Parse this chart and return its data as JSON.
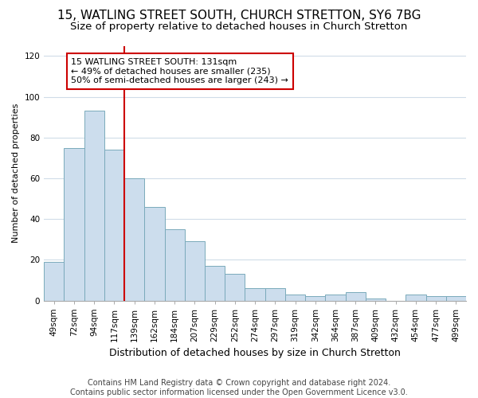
{
  "title": "15, WATLING STREET SOUTH, CHURCH STRETTON, SY6 7BG",
  "subtitle": "Size of property relative to detached houses in Church Stretton",
  "xlabel": "Distribution of detached houses by size in Church Stretton",
  "ylabel": "Number of detached properties",
  "bar_labels": [
    "49sqm",
    "72sqm",
    "94sqm",
    "117sqm",
    "139sqm",
    "162sqm",
    "184sqm",
    "207sqm",
    "229sqm",
    "252sqm",
    "274sqm",
    "297sqm",
    "319sqm",
    "342sqm",
    "364sqm",
    "387sqm",
    "409sqm",
    "432sqm",
    "454sqm",
    "477sqm",
    "499sqm"
  ],
  "bar_values": [
    19,
    75,
    93,
    74,
    60,
    46,
    35,
    29,
    17,
    13,
    6,
    6,
    3,
    2,
    3,
    4,
    1,
    0,
    3,
    2,
    2
  ],
  "bar_color": "#ccdded",
  "bar_edge_color": "#7aaabb",
  "vline_color": "#cc0000",
  "vline_index": 4,
  "annotation_text": "15 WATLING STREET SOUTH: 131sqm\n← 49% of detached houses are smaller (235)\n50% of semi-detached houses are larger (243) →",
  "annotation_box_facecolor": "#ffffff",
  "annotation_box_edgecolor": "#cc0000",
  "ylim": [
    0,
    125
  ],
  "yticks": [
    0,
    20,
    40,
    60,
    80,
    100,
    120
  ],
  "bg_color": "#ffffff",
  "plot_bg_color": "#ffffff",
  "grid_color": "#d0dce8",
  "title_fontsize": 11,
  "subtitle_fontsize": 9.5,
  "xlabel_fontsize": 9,
  "ylabel_fontsize": 8,
  "tick_fontsize": 7.5,
  "annotation_fontsize": 8,
  "footer_fontsize": 7,
  "footer": "Contains HM Land Registry data © Crown copyright and database right 2024.\nContains public sector information licensed under the Open Government Licence v3.0."
}
